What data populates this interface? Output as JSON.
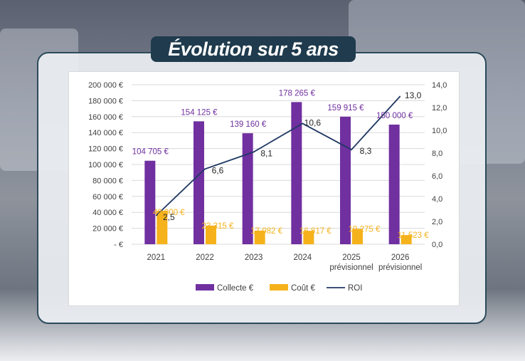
{
  "page": {
    "title": "Évolution sur 5 ans"
  },
  "chart_data": {
    "type": "bar",
    "categories": [
      [
        "2021"
      ],
      [
        "2022"
      ],
      [
        "2023"
      ],
      [
        "2024"
      ],
      [
        "2025",
        "prévisionnel"
      ],
      [
        "2026",
        "prévisionnel"
      ]
    ],
    "series": [
      {
        "name": "Collecte €",
        "axis": "left",
        "color": "#7030a0",
        "values": [
          104705,
          154125,
          139160,
          178265,
          159915,
          150000
        ],
        "labels": [
          "104 705 €",
          "154 125 €",
          "139 160 €",
          "178 265 €",
          "159 915 €",
          "150 000 €"
        ]
      },
      {
        "name": "Coût €",
        "axis": "left",
        "color": "#f5b21b",
        "values": [
          42000,
          23315,
          17082,
          16817,
          19275,
          11523
        ],
        "labels": [
          "42 000 €",
          "23 315 €",
          "17 082 €",
          "16 817 €",
          "19 275 €",
          "11 523 €"
        ]
      },
      {
        "name": "ROI",
        "type": "line",
        "axis": "right",
        "color": "#203864",
        "values": [
          2.5,
          6.6,
          8.1,
          10.6,
          8.3,
          13.0
        ],
        "labels": [
          "2,5",
          "6,6",
          "8,1",
          "10,6",
          "8,3",
          "13,0"
        ]
      }
    ],
    "y_left": {
      "ylim": [
        0,
        200000
      ],
      "ticks": [
        0,
        20000,
        40000,
        60000,
        80000,
        100000,
        120000,
        140000,
        160000,
        180000,
        200000
      ],
      "tick_labels": [
        "-   €",
        "20 000 €",
        "40 000 €",
        "60 000 €",
        "80 000 €",
        "100 000 €",
        "120 000 €",
        "140 000 €",
        "160 000 €",
        "180 000 €",
        "200 000 €"
      ]
    },
    "y_right": {
      "ylim": [
        0,
        14
      ],
      "ticks": [
        0,
        2,
        4,
        6,
        8,
        10,
        12,
        14
      ],
      "tick_labels": [
        "0,0",
        "2,0",
        "4,0",
        "6,0",
        "8,0",
        "10,0",
        "12,0",
        "14,0"
      ]
    },
    "grid": true,
    "legend": "bottom"
  }
}
